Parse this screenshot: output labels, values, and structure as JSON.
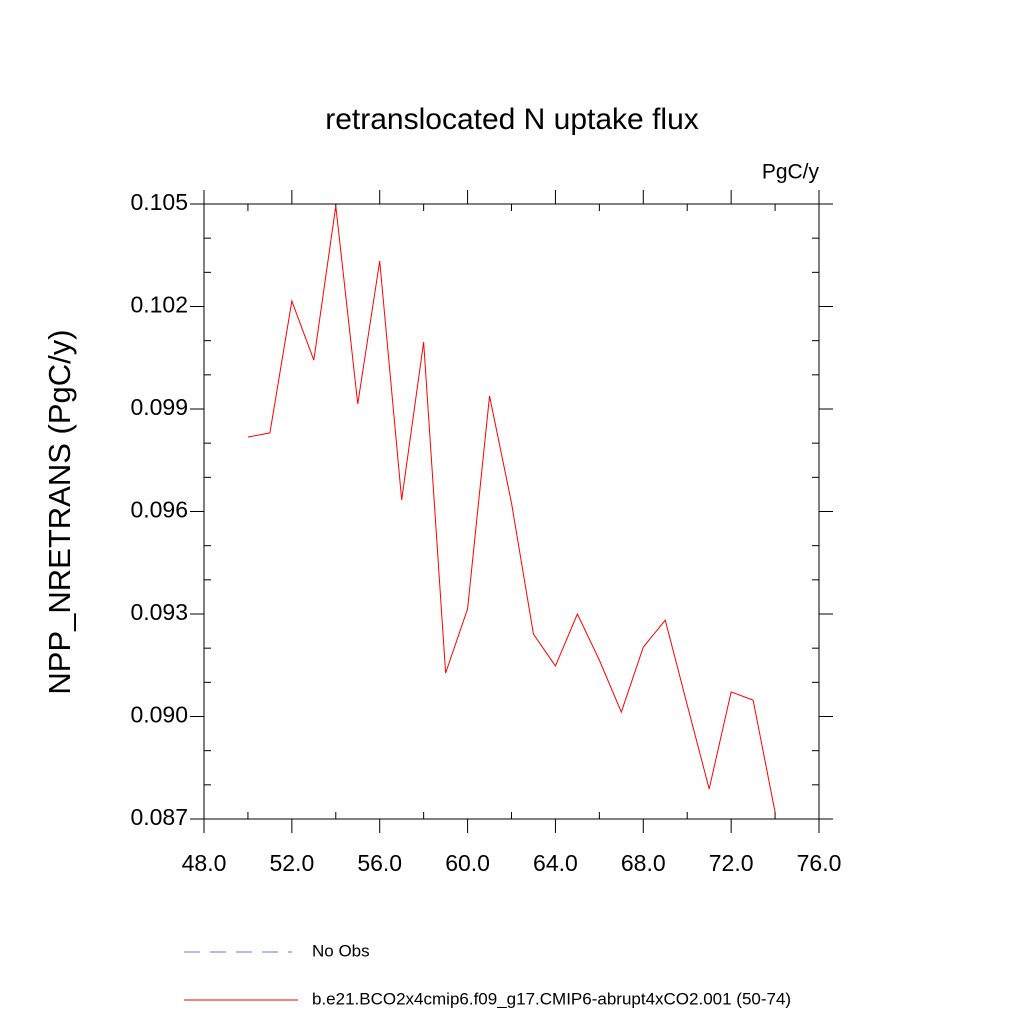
{
  "chart_data": {
    "type": "line",
    "title": "retranslocated N uptake flux",
    "units": "PgC/y",
    "ylabel": "NPP_NRETRANS  (PgC/y)",
    "x": [
      50,
      51,
      52,
      53,
      54,
      55,
      56,
      57,
      58,
      59,
      60,
      61,
      62,
      63,
      64,
      65,
      66,
      67,
      68,
      69,
      70,
      71,
      72,
      73,
      74
    ],
    "series": [
      {
        "name": "b.e21.BCO2x4cmip6.f09_g17.CMIP6-abrupt4xCO2.001 (50-74)",
        "color": "#ff0000",
        "values": [
          0.09818,
          0.0983,
          0.10216,
          0.10043,
          0.10494,
          0.09915,
          0.10333,
          0.09634,
          0.10096,
          0.09127,
          0.09315,
          0.09938,
          0.09625,
          0.09241,
          0.09148,
          0.093,
          0.09165,
          0.09013,
          0.09203,
          0.09282,
          0.09034,
          0.08788,
          0.09072,
          0.09048,
          0.0872
        ]
      }
    ],
    "extra_legend": [
      {
        "name": "No Obs",
        "color": "#7070e0",
        "dashed": true
      }
    ],
    "xlim": [
      48,
      76
    ],
    "xticks": [
      {
        "value": 48,
        "label": "48.0"
      },
      {
        "value": 52,
        "label": "52.0"
      },
      {
        "value": 56,
        "label": "56.0"
      },
      {
        "value": 60,
        "label": "60.0"
      },
      {
        "value": 64,
        "label": "64.0"
      },
      {
        "value": 68,
        "label": "68.0"
      },
      {
        "value": 72,
        "label": "72.0"
      },
      {
        "value": 76,
        "label": "76.0"
      }
    ],
    "ylim": [
      0.087,
      0.105
    ],
    "yticks": [
      0.087,
      {
        "value": 0.09,
        "label": "0.090"
      },
      0.093,
      0.096,
      0.099,
      0.102,
      0.105
    ]
  }
}
